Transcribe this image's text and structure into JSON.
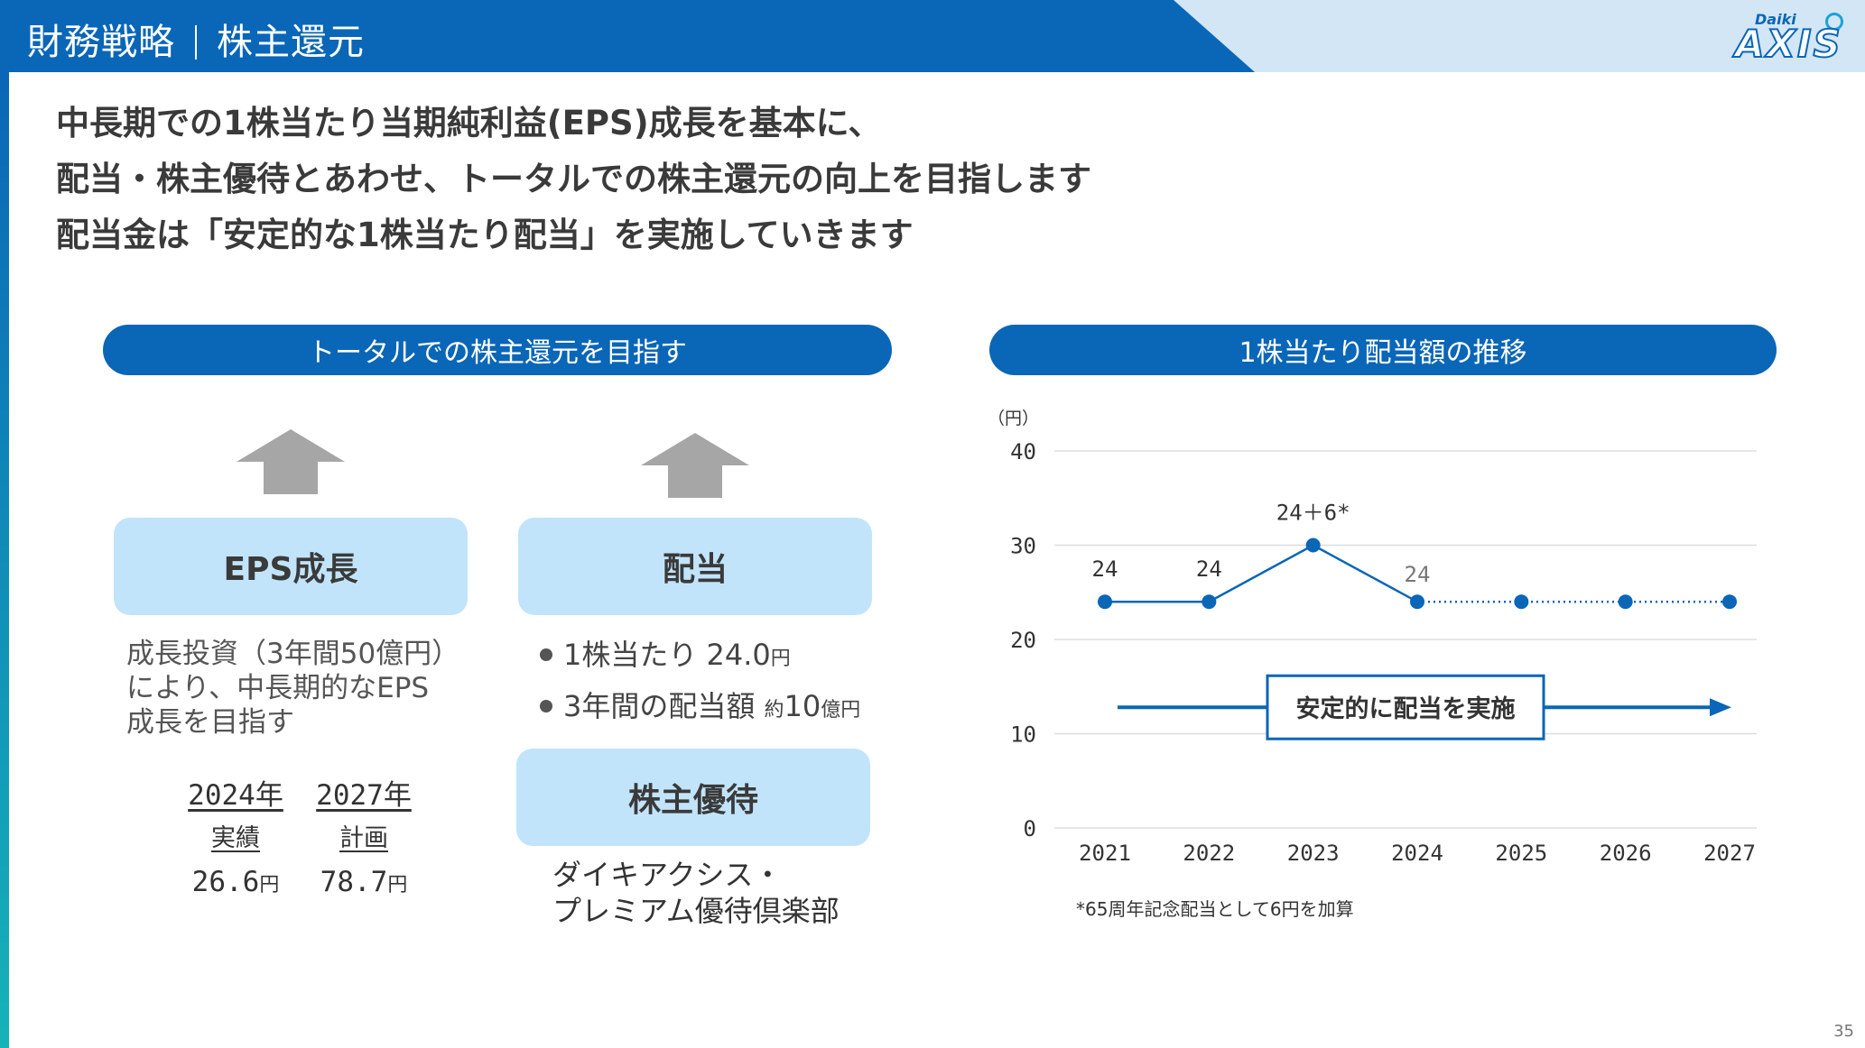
{
  "header": {
    "section": "財務戦略",
    "topic": "株主還元",
    "logo_small": "Daiki",
    "logo_big": "AXIS"
  },
  "intro": {
    "line1": "中長期での1株当たり当期純利益(EPS)成長を基本に、",
    "line2": "配当・株主優待とあわせ、トータルでの株主還元の向上を目指します",
    "line3": "配当金は「安定的な1株当たり配当」を実施していきます"
  },
  "left_panel": {
    "title": "トータルでの株主還元を目指す",
    "eps_box": "EPS成長",
    "eps_desc": [
      "成長投資（3年間50億円）",
      "により、中長期的なEPS",
      "成長を目指す"
    ],
    "eps_table": [
      {
        "year": "2024年",
        "kind": "実績",
        "value": "26.6",
        "unit": "円"
      },
      {
        "year": "2027年",
        "kind": "計画",
        "value": "78.7",
        "unit": "円"
      }
    ],
    "div_box": "配当",
    "div_bullets": [
      {
        "text": "1株当たり 24.0",
        "unit": "円",
        "prefix": ""
      },
      {
        "text": "3年間の配当額 ",
        "prefix_small": "約",
        "num": "10",
        "unit": "億円"
      }
    ],
    "perk_box": "株主優待",
    "perk_desc": [
      "ダイキアクシス・",
      "プレミアム優待倶楽部"
    ]
  },
  "right_panel": {
    "title": "1株当たり配当額の推移"
  },
  "chart_data": {
    "type": "line",
    "ylabel": "（円）",
    "ylim": [
      0,
      40
    ],
    "yticks": [
      0,
      10,
      20,
      30,
      40
    ],
    "x": [
      "2021",
      "2022",
      "2023",
      "2024",
      "2025",
      "2026",
      "2027"
    ],
    "values": [
      24,
      24,
      30,
      24,
      24,
      24,
      24
    ],
    "actual_until_index": 3,
    "data_labels": [
      "24",
      "24",
      "24＋6*",
      "24",
      "",
      "",
      ""
    ],
    "annotation": "安定的に配当を実施",
    "grid": true,
    "color": "#0a66b7",
    "footnote": "*65周年記念配当として6円を加算"
  },
  "page_number": "35",
  "colors": {
    "brand": "#0a66b7",
    "light_box": "#c2e4fb",
    "header_light": "#d3e6f5",
    "arrow_gray": "#a6a6a6"
  }
}
